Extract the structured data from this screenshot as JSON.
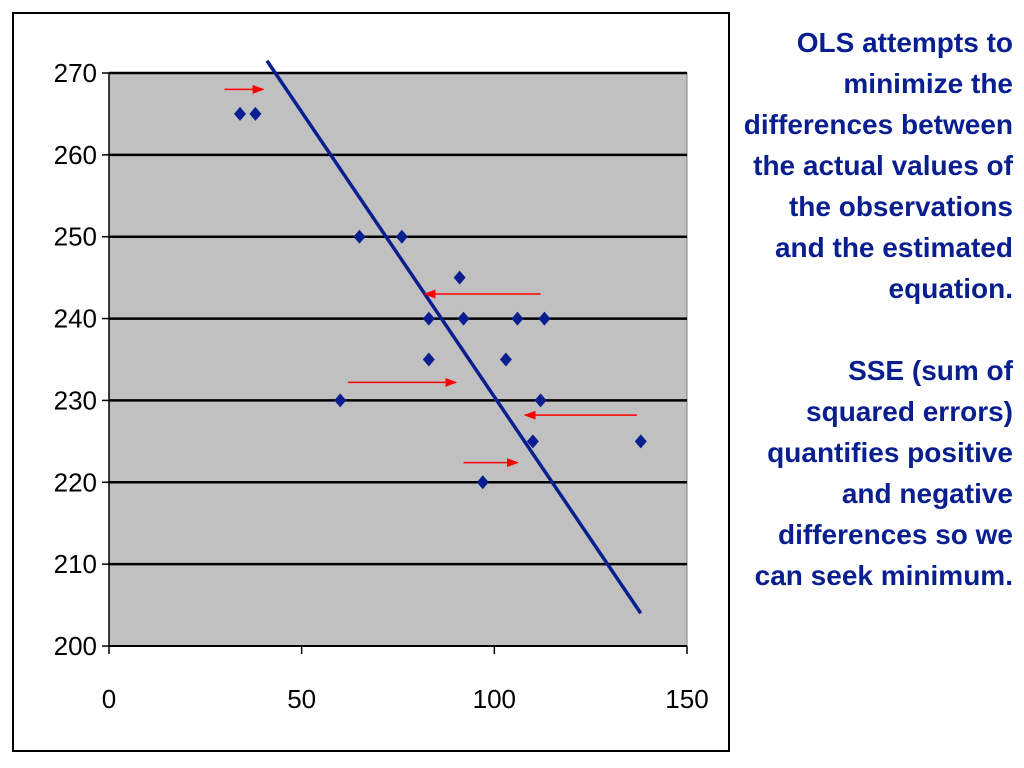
{
  "text_panel": {
    "paragraph_1": "OLS attempts to minimize the differences between the actual values of the observations and the estimated equation.",
    "paragraph_2": "SSE (sum of squared errors) quantifies positive and negative differences so we can seek minimum."
  },
  "colors": {
    "plot_background": "#c0c0c0",
    "points": "#0a1f8f",
    "regression_line": "#0a1f8f",
    "arrows": "#ff0000",
    "text": "#0a1f8f"
  },
  "chart_data": {
    "type": "scatter",
    "title": "",
    "xlabel": "",
    "ylabel": "",
    "xlim": [
      0,
      150
    ],
    "ylim": [
      200,
      270
    ],
    "x_ticks": [
      "0",
      "50",
      "100",
      "150"
    ],
    "y_ticks": [
      "200",
      "210",
      "220",
      "230",
      "240",
      "250",
      "260",
      "270"
    ],
    "grid": "horizontal",
    "legend": "none",
    "series": [
      {
        "points": [
          [
            34,
            265
          ],
          [
            38,
            265
          ],
          [
            65,
            250
          ],
          [
            76,
            250
          ],
          [
            91,
            245
          ],
          [
            83,
            240
          ],
          [
            92,
            240
          ],
          [
            106,
            240
          ],
          [
            113,
            240
          ],
          [
            83,
            235
          ],
          [
            103,
            235
          ],
          [
            60,
            230
          ],
          [
            112,
            230
          ],
          [
            110,
            225
          ],
          [
            138,
            225
          ],
          [
            97,
            220
          ]
        ]
      }
    ],
    "regression_line": {
      "x1": 41,
      "y1": 271.5,
      "x2": 138,
      "y2": 204
    },
    "annotations": [
      {
        "type": "arrow",
        "from": [
          30,
          268
        ],
        "to": [
          40,
          268
        ]
      },
      {
        "type": "arrow",
        "from": [
          112,
          243
        ],
        "to": [
          82,
          243
        ]
      },
      {
        "type": "arrow",
        "from": [
          62,
          232.2
        ],
        "to": [
          90,
          232.2
        ]
      },
      {
        "type": "arrow",
        "from": [
          137,
          228.2
        ],
        "to": [
          108,
          228.2
        ]
      },
      {
        "type": "arrow",
        "from": [
          92,
          222.4
        ],
        "to": [
          106,
          222.4
        ]
      }
    ]
  }
}
